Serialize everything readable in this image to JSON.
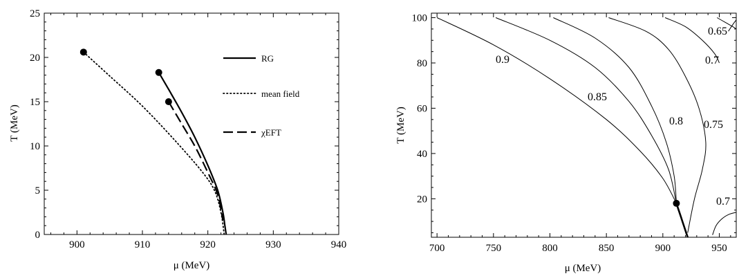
{
  "chart_data": [
    {
      "type": "line",
      "xlabel": "μ (MeV)",
      "ylabel": "T (MeV)",
      "xlim": [
        895,
        940
      ],
      "ylim": [
        0,
        25
      ],
      "xticks": [
        "900",
        "910",
        "920",
        "930",
        "940"
      ],
      "yticks": [
        "0",
        "5",
        "10",
        "15",
        "20",
        "25"
      ],
      "legend_placement": "top-right",
      "legend": [
        "RG",
        "mean field",
        "χEFT"
      ],
      "series": [
        {
          "name": "RG",
          "style": "solid",
          "x": [
            912.5,
            914,
            916,
            918,
            920,
            921.5,
            922.3,
            922.6,
            922.8
          ],
          "y": [
            18.3,
            16.4,
            13.8,
            11.0,
            7.8,
            5.0,
            2.5,
            1.0,
            0
          ],
          "endpoint": [
            912.5,
            18.3
          ]
        },
        {
          "name": "mean field",
          "style": "dotted",
          "x": [
            901.0,
            905,
            910,
            915,
            919,
            921,
            922.0,
            922.5
          ],
          "y": [
            20.6,
            17.9,
            14.5,
            10.6,
            7.2,
            5.0,
            2.5,
            0
          ],
          "endpoint": [
            901.0,
            20.6
          ]
        },
        {
          "name": "χEFT",
          "style": "dashed",
          "x": [
            914.0,
            916,
            918,
            920,
            921.5,
            922.3
          ],
          "y": [
            15.0,
            12.5,
            10.0,
            7.0,
            4.5,
            1.6
          ],
          "endpoint": [
            914.0,
            15.0
          ]
        }
      ]
    },
    {
      "type": "line",
      "xlabel": "μ (MeV)",
      "ylabel": "T (MeV)",
      "xlim": [
        695,
        965
      ],
      "ylim": [
        3,
        102
      ],
      "xticks": [
        "700",
        "750",
        "800",
        "850",
        "900",
        "950"
      ],
      "yticks": [
        "20",
        "40",
        "60",
        "80",
        "100"
      ],
      "critical_point": [
        912,
        18
      ],
      "series": [
        {
          "label": "0.9",
          "x": [
            700,
            750,
            800,
            850,
            880,
            900,
            912
          ],
          "y": [
            100,
            88,
            73,
            55,
            41,
            29,
            18
          ]
        },
        {
          "label": "0.85",
          "x": [
            752,
            800,
            840,
            870,
            890,
            905,
            912
          ],
          "y": [
            100,
            90,
            78,
            63,
            48,
            33,
            18
          ]
        },
        {
          "label": "0.8",
          "x": [
            803,
            840,
            870,
            890,
            903,
            910,
            912
          ],
          "y": [
            100,
            91,
            78,
            61,
            45,
            30,
            18
          ]
        },
        {
          "label": "0.75",
          "x": [
            852,
            885,
            905,
            920,
            932,
            938,
            935,
            928,
            922
          ],
          "y": [
            100,
            94,
            86,
            74,
            60,
            45,
            33,
            20,
            5
          ]
        },
        {
          "label": "0.7",
          "x": [
            902,
            920,
            935,
            946,
            950
          ],
          "y": [
            100,
            96,
            90,
            84,
            80
          ]
        },
        {
          "label": "0.7",
          "x": [
            944,
            947,
            952,
            958,
            965
          ],
          "y": [
            4,
            8,
            11,
            13,
            14
          ]
        },
        {
          "label": "0.65",
          "x": [
            948,
            955,
            962,
            965
          ],
          "y": [
            100,
            98,
            96,
            95
          ]
        },
        {
          "label": "",
          "x": [
            958,
            962,
            965
          ],
          "y": [
            94,
            97,
            99
          ]
        },
        {
          "label": "",
          "style": "thick",
          "x": [
            912,
            916,
            920,
            922
          ],
          "y": [
            18,
            12,
            6,
            3
          ]
        }
      ]
    }
  ]
}
